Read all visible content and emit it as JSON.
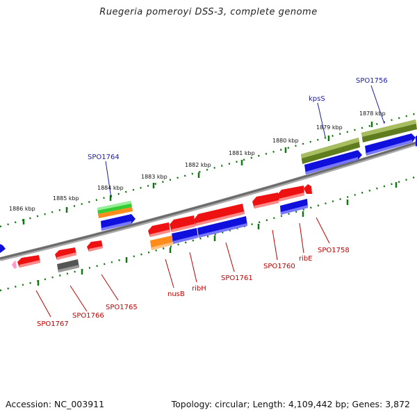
{
  "title": "Ruegeria pomeroyi DSS-3, complete genome",
  "footer": {
    "accession": "Accession: NC_003911",
    "summary": "Topology: circular; Length: 4,109,442 bp; Genes: 3,872"
  },
  "colors": {
    "red": "#ee1111",
    "blue": "#1010dd",
    "olive": "#5f7d1e",
    "green": "#33cc33",
    "orange": "#ff8c1a",
    "gray": "#666666",
    "pink": "#ff99cc",
    "tick": "#117711",
    "label_top": "#1a1aa8",
    "label_bottom": "#c00000"
  },
  "scale_top": [
    "1878 kbp",
    "1879 kbp",
    "1880 kbp",
    "1881 kbp",
    "1882 kbp",
    "1883 kbp",
    "1884 kbp",
    "1885 kbp",
    "1886 kbp"
  ],
  "labels_top": [
    "SPO1756",
    "kpsS",
    "SPO1764"
  ],
  "labels_bottom": [
    "SPO1758",
    "ribE",
    "SPO1760",
    "SPO1761",
    "ribH",
    "nusB",
    "SPO1765",
    "SPO1766",
    "SPO1767"
  ]
}
